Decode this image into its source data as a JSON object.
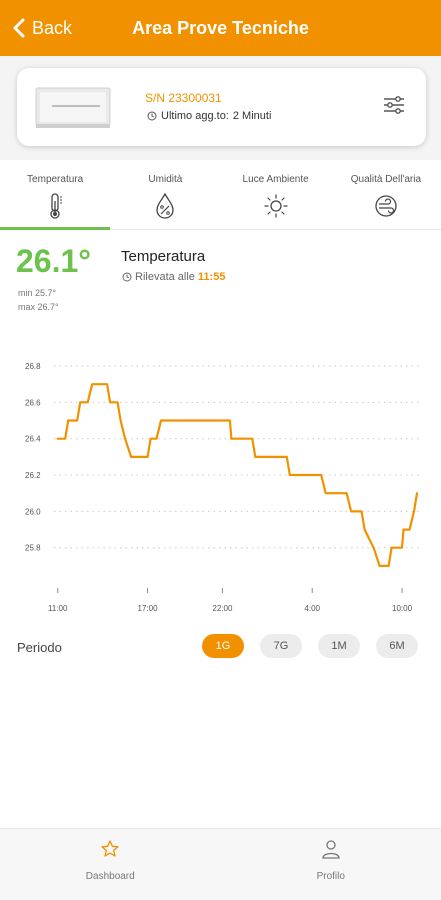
{
  "header": {
    "back_label": "Back",
    "title": "Area Prove Tecniche"
  },
  "device": {
    "serial": "S/N 23300031",
    "updated_label": "Ultimo agg.to:",
    "updated_value": "2 Minuti"
  },
  "tabs": [
    {
      "label": "Temperatura",
      "icon": "thermometer-icon",
      "active": true
    },
    {
      "label": "Umidità",
      "icon": "humidity-icon",
      "active": false
    },
    {
      "label": "Luce Ambiente",
      "icon": "sun-icon",
      "active": false
    },
    {
      "label": "Qualità Dell'aria",
      "icon": "air-quality-icon",
      "active": false
    }
  ],
  "reading": {
    "value": "26.1°",
    "min": "min 25.7°",
    "max": "max 26.7°",
    "title": "Temperatura",
    "time_label": "Rilevata alle",
    "time_value": "11:55"
  },
  "chart_data": {
    "type": "line",
    "ylim": [
      25.65,
      26.8
    ],
    "yticks": [
      25.8,
      26.0,
      26.2,
      26.4,
      26.6,
      26.8
    ],
    "ytick_labels": [
      "25.8",
      "26.0",
      "26.2",
      "26.4",
      "26.6",
      "26.8"
    ],
    "xlim": [
      10.75,
      35.2
    ],
    "xticks": [
      11,
      17,
      22,
      28,
      34
    ],
    "xtick_labels": [
      "11:00",
      "17:00",
      "22:00",
      "4:00",
      "10:00"
    ],
    "grid": true,
    "color": "#f29100",
    "points": [
      [
        11.0,
        26.4
      ],
      [
        11.5,
        26.4
      ],
      [
        11.7,
        26.5
      ],
      [
        12.3,
        26.5
      ],
      [
        12.5,
        26.6
      ],
      [
        13.0,
        26.6
      ],
      [
        13.3,
        26.7
      ],
      [
        14.3,
        26.7
      ],
      [
        14.5,
        26.6
      ],
      [
        15.0,
        26.6
      ],
      [
        15.2,
        26.5
      ],
      [
        15.5,
        26.4
      ],
      [
        15.9,
        26.3
      ],
      [
        17.0,
        26.3
      ],
      [
        17.2,
        26.4
      ],
      [
        17.6,
        26.4
      ],
      [
        17.9,
        26.5
      ],
      [
        22.5,
        26.5
      ],
      [
        22.6,
        26.4
      ],
      [
        24.0,
        26.4
      ],
      [
        24.2,
        26.3
      ],
      [
        26.3,
        26.3
      ],
      [
        26.5,
        26.2
      ],
      [
        28.0,
        26.2
      ],
      [
        28.6,
        26.2
      ],
      [
        28.9,
        26.1
      ],
      [
        30.3,
        26.1
      ],
      [
        30.6,
        26.0
      ],
      [
        31.3,
        26.0
      ],
      [
        31.5,
        25.9
      ],
      [
        32.1,
        25.8
      ],
      [
        32.5,
        25.7
      ],
      [
        33.1,
        25.7
      ],
      [
        33.3,
        25.8
      ],
      [
        34.0,
        25.8
      ],
      [
        34.1,
        25.9
      ],
      [
        34.5,
        25.9
      ],
      [
        34.8,
        26.0
      ],
      [
        35.0,
        26.1
      ]
    ]
  },
  "period": {
    "label": "Periodo",
    "options": [
      {
        "label": "1G",
        "active": true
      },
      {
        "label": "7G",
        "active": false
      },
      {
        "label": "1M",
        "active": false
      },
      {
        "label": "6M",
        "active": false
      }
    ]
  },
  "footer": {
    "items": [
      {
        "label": "Dashboard",
        "icon": "star-icon"
      },
      {
        "label": "Profilo",
        "icon": "user-icon"
      }
    ]
  },
  "colors": {
    "accent": "#f29100",
    "value_green": "#6cc24a"
  }
}
